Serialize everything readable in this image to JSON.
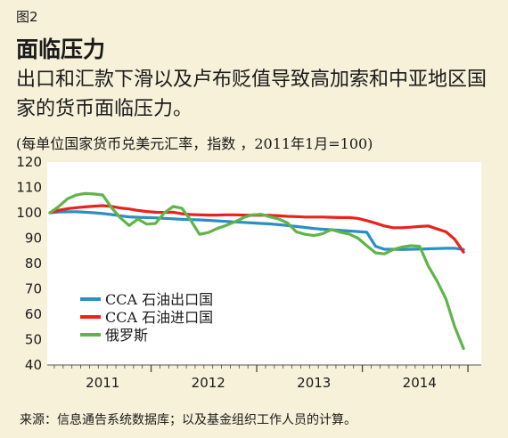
{
  "header": {
    "figure_label": "图2",
    "title": "面临压力",
    "subtitle": "出口和汇款下滑以及卢布贬值导致高加索和中亚地区国家的货币面临压力。",
    "note": "(每单位国家货币兑美元汇率，指数 ，2011年1月=100)"
  },
  "footer": {
    "source": "来源：信息通告系统数据库；以及基金组织工作人员的计算。"
  },
  "chart_data": {
    "type": "line",
    "title": "面临压力",
    "ylim": [
      40,
      120
    ],
    "yticks": [
      40,
      50,
      60,
      70,
      80,
      90,
      100,
      110,
      120
    ],
    "xlim": [
      0,
      48
    ],
    "x_label_positions": [
      6,
      18,
      30,
      42
    ],
    "x_tick_labels": [
      "2011",
      "2012",
      "2013",
      "2014"
    ],
    "x_tick_count": 48,
    "grid": false,
    "legend_position": "bottom-left",
    "series": [
      {
        "name": "CCA 石油出口国",
        "color": "#2a8fc4",
        "x": [
          0,
          1,
          2,
          3,
          4,
          5,
          6,
          7,
          8,
          9,
          10,
          11,
          12,
          13,
          14,
          15,
          16,
          17,
          18,
          19,
          20,
          21,
          22,
          23,
          24,
          25,
          26,
          27,
          28,
          29,
          30,
          31,
          32,
          33,
          34,
          35,
          36,
          37,
          38,
          39,
          40,
          41,
          42,
          43,
          44,
          45,
          46,
          47
        ],
        "values": [
          100,
          100.3,
          100.4,
          100.4,
          100.2,
          100,
          99.7,
          99.3,
          98.8,
          98.4,
          98.2,
          98.1,
          98,
          97.8,
          97.6,
          97.4,
          97.3,
          97.2,
          97,
          96.8,
          96.6,
          96.4,
          96.2,
          96,
          95.8,
          95.6,
          95.3,
          95,
          94.6,
          94.2,
          93.8,
          93.5,
          93.3,
          93.1,
          92.8,
          92.6,
          92.3,
          86.8,
          85.6,
          85.6,
          85.5,
          85.6,
          85.7,
          85.8,
          85.9,
          86,
          86,
          85.5
        ]
      },
      {
        "name": "CCA 石油进口国",
        "color": "#e8231e",
        "x": [
          0,
          1,
          2,
          3,
          4,
          5,
          6,
          7,
          8,
          9,
          10,
          11,
          12,
          13,
          14,
          15,
          16,
          17,
          18,
          19,
          20,
          21,
          22,
          23,
          24,
          25,
          26,
          27,
          28,
          29,
          30,
          31,
          32,
          33,
          34,
          35,
          36,
          37,
          38,
          39,
          40,
          41,
          42,
          43,
          44,
          45,
          46,
          47
        ],
        "values": [
          100,
          101,
          101.6,
          102,
          102.3,
          102.6,
          102.8,
          102.5,
          101.9,
          101.5,
          100.9,
          100.5,
          100.2,
          100.1,
          100.2,
          99.6,
          99.3,
          99.2,
          99.1,
          99.1,
          99.2,
          99.2,
          99.1,
          99,
          99,
          99,
          98.8,
          98.6,
          98.5,
          98.3,
          98.3,
          98.3,
          98.2,
          98.1,
          98.1,
          97.8,
          96.9,
          95.9,
          94.8,
          94.1,
          94.1,
          94.3,
          94.6,
          94.8,
          93.6,
          92.5,
          89.5,
          84.5
        ]
      },
      {
        "name": "俄罗斯",
        "color": "#5fb548",
        "x": [
          0,
          1,
          2,
          3,
          4,
          5,
          6,
          7,
          8,
          9,
          10,
          11,
          12,
          13,
          14,
          15,
          16,
          17,
          18,
          19,
          20,
          21,
          22,
          23,
          24,
          25,
          26,
          27,
          28,
          29,
          30,
          31,
          32,
          33,
          34,
          35,
          36,
          37,
          38,
          39,
          40,
          41,
          42,
          43,
          44,
          45,
          46,
          47
        ],
        "values": [
          100,
          102.5,
          105.5,
          107,
          107.6,
          107.4,
          107,
          102,
          98,
          95,
          97.5,
          95.5,
          95.8,
          100,
          102.5,
          101.8,
          97,
          91.5,
          92.2,
          93.8,
          95,
          96.4,
          98.1,
          99.2,
          99.4,
          98.4,
          97.5,
          96,
          92.5,
          91.5,
          91,
          91.8,
          93.4,
          92.3,
          91.6,
          90,
          87,
          84.2,
          83.8,
          85.5,
          86.5,
          87,
          86.8,
          79,
          73,
          66,
          55,
          46.5
        ]
      }
    ]
  }
}
